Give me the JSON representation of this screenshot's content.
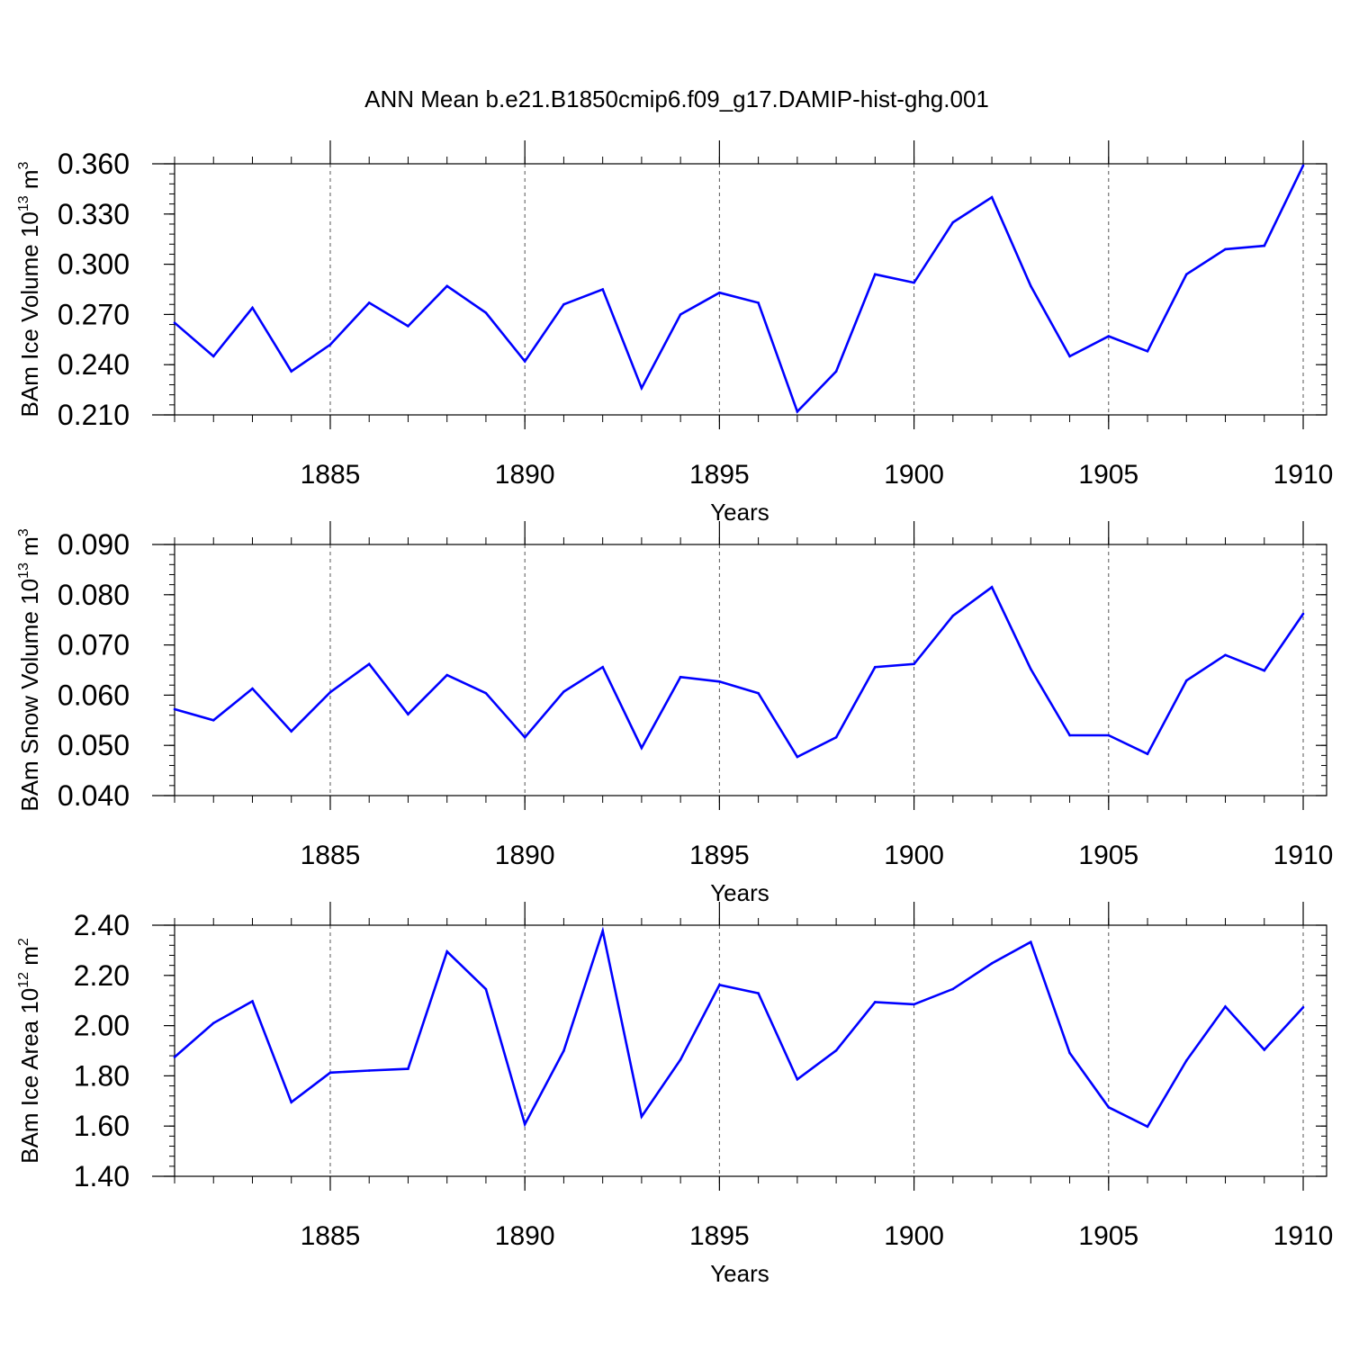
{
  "title": "ANN Mean b.e21.B1850cmip6.f09_g17.DAMIP-hist-ghg.001",
  "chart_data": [
    {
      "type": "line",
      "ylabel": {
        "base": "BAm Ice Volume 10",
        "exp": "13",
        "unit": " m",
        "unit_exp": "3"
      },
      "xlabel": "Years",
      "xlim": [
        1881,
        1910
      ],
      "ylim": [
        0.21,
        0.36
      ],
      "yticks": [
        0.21,
        0.24,
        0.27,
        0.3,
        0.33,
        0.36
      ],
      "ytick_labels": [
        "0.210",
        "0.240",
        "0.270",
        "0.300",
        "0.330",
        "0.360"
      ],
      "xticks": [
        1885,
        1890,
        1895,
        1900,
        1905,
        1910
      ],
      "xtick_labels": [
        "1885",
        "1890",
        "1895",
        "1900",
        "1905",
        "1910"
      ],
      "line_color": "#0000ff",
      "x": [
        1881,
        1882,
        1883,
        1884,
        1885,
        1886,
        1887,
        1888,
        1889,
        1890,
        1891,
        1892,
        1893,
        1894,
        1895,
        1896,
        1897,
        1898,
        1899,
        1900,
        1901,
        1902,
        1903,
        1904,
        1905,
        1906,
        1907,
        1908,
        1909,
        1910
      ],
      "values": [
        0.265,
        0.245,
        0.274,
        0.236,
        0.252,
        0.277,
        0.263,
        0.287,
        0.271,
        0.242,
        0.276,
        0.285,
        0.226,
        0.27,
        0.283,
        0.277,
        0.212,
        0.236,
        0.294,
        0.289,
        0.325,
        0.34,
        0.287,
        0.245,
        0.257,
        0.248,
        0.294,
        0.309,
        0.311,
        0.359
      ]
    },
    {
      "type": "line",
      "ylabel": {
        "base": "BAm Snow Volume 10",
        "exp": "13",
        "unit": " m",
        "unit_exp": "3"
      },
      "xlabel": "Years",
      "xlim": [
        1881,
        1910
      ],
      "ylim": [
        0.04,
        0.09
      ],
      "yticks": [
        0.04,
        0.05,
        0.06,
        0.07,
        0.08,
        0.09
      ],
      "ytick_labels": [
        "0.040",
        "0.050",
        "0.060",
        "0.070",
        "0.080",
        "0.090"
      ],
      "xticks": [
        1885,
        1890,
        1895,
        1900,
        1905,
        1910
      ],
      "xtick_labels": [
        "1885",
        "1890",
        "1895",
        "1900",
        "1905",
        "1910"
      ],
      "line_color": "#0000ff",
      "x": [
        1881,
        1882,
        1883,
        1884,
        1885,
        1886,
        1887,
        1888,
        1889,
        1890,
        1891,
        1892,
        1893,
        1894,
        1895,
        1896,
        1897,
        1898,
        1899,
        1900,
        1901,
        1902,
        1903,
        1904,
        1905,
        1906,
        1907,
        1908,
        1909,
        1910
      ],
      "values": [
        0.0572,
        0.055,
        0.0613,
        0.0528,
        0.0606,
        0.0662,
        0.0562,
        0.064,
        0.0604,
        0.0516,
        0.0607,
        0.0656,
        0.0495,
        0.0636,
        0.0627,
        0.0604,
        0.0477,
        0.0516,
        0.0656,
        0.0662,
        0.0758,
        0.0815,
        0.0652,
        0.052,
        0.052,
        0.0483,
        0.0629,
        0.068,
        0.0649,
        0.0762
      ]
    },
    {
      "type": "line",
      "ylabel": {
        "base": "BAm Ice Area 10",
        "exp": "12",
        "unit": " m",
        "unit_exp": "2"
      },
      "xlabel": "Years",
      "xlim": [
        1881,
        1910
      ],
      "ylim": [
        1.4,
        2.4
      ],
      "yticks": [
        1.4,
        1.6,
        1.8,
        2.0,
        2.2,
        2.4
      ],
      "ytick_labels": [
        "1.40",
        "1.60",
        "1.80",
        "2.00",
        "2.20",
        "2.40"
      ],
      "xticks": [
        1885,
        1890,
        1895,
        1900,
        1905,
        1910
      ],
      "xtick_labels": [
        "1885",
        "1890",
        "1895",
        "1900",
        "1905",
        "1910"
      ],
      "line_color": "#0000ff",
      "x": [
        1881,
        1882,
        1883,
        1884,
        1885,
        1886,
        1887,
        1888,
        1889,
        1890,
        1891,
        1892,
        1893,
        1894,
        1895,
        1896,
        1897,
        1898,
        1899,
        1900,
        1901,
        1902,
        1903,
        1904,
        1905,
        1906,
        1907,
        1908,
        1909,
        1910
      ],
      "values": [
        1.875,
        2.01,
        2.097,
        1.695,
        1.813,
        1.821,
        1.828,
        2.295,
        2.145,
        1.607,
        1.9,
        2.377,
        1.638,
        1.865,
        2.162,
        2.129,
        1.786,
        1.901,
        2.094,
        2.085,
        2.146,
        2.248,
        2.333,
        1.891,
        1.675,
        1.598,
        1.861,
        2.076,
        1.904,
        2.073
      ]
    }
  ]
}
